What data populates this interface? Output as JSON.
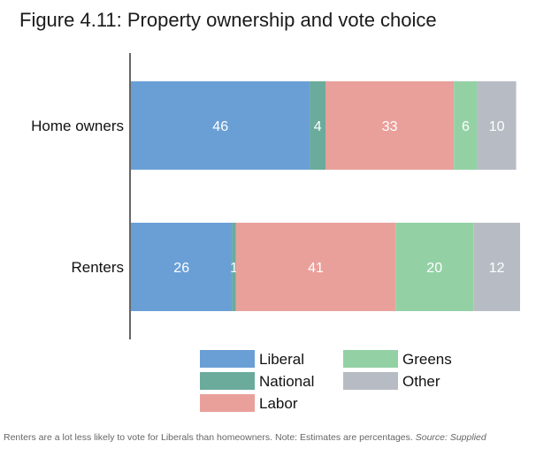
{
  "chart_data": {
    "type": "bar",
    "orientation": "horizontal",
    "stacked": true,
    "title": "Figure 4.11: Property ownership and vote choice",
    "categories": [
      "Home owners",
      "Renters"
    ],
    "series": [
      {
        "name": "Liberal",
        "color": "#6a9fd6",
        "values": [
          46,
          26
        ]
      },
      {
        "name": "National",
        "color": "#6aab9c",
        "values": [
          4,
          1
        ]
      },
      {
        "name": "Labor",
        "color": "#e9a09b",
        "values": [
          33,
          41
        ]
      },
      {
        "name": "Greens",
        "color": "#93d1a5",
        "values": [
          6,
          20
        ]
      },
      {
        "name": "Other",
        "color": "#b7bcc4",
        "values": [
          10,
          12
        ]
      }
    ],
    "xlim": [
      0,
      100
    ],
    "grid": false,
    "legend": "bottom"
  },
  "caption": {
    "text": "Renters are a lot less likely to vote for Liberals than homeowners. Note: Estimates are percentages.",
    "source": "Source: Supplied"
  }
}
